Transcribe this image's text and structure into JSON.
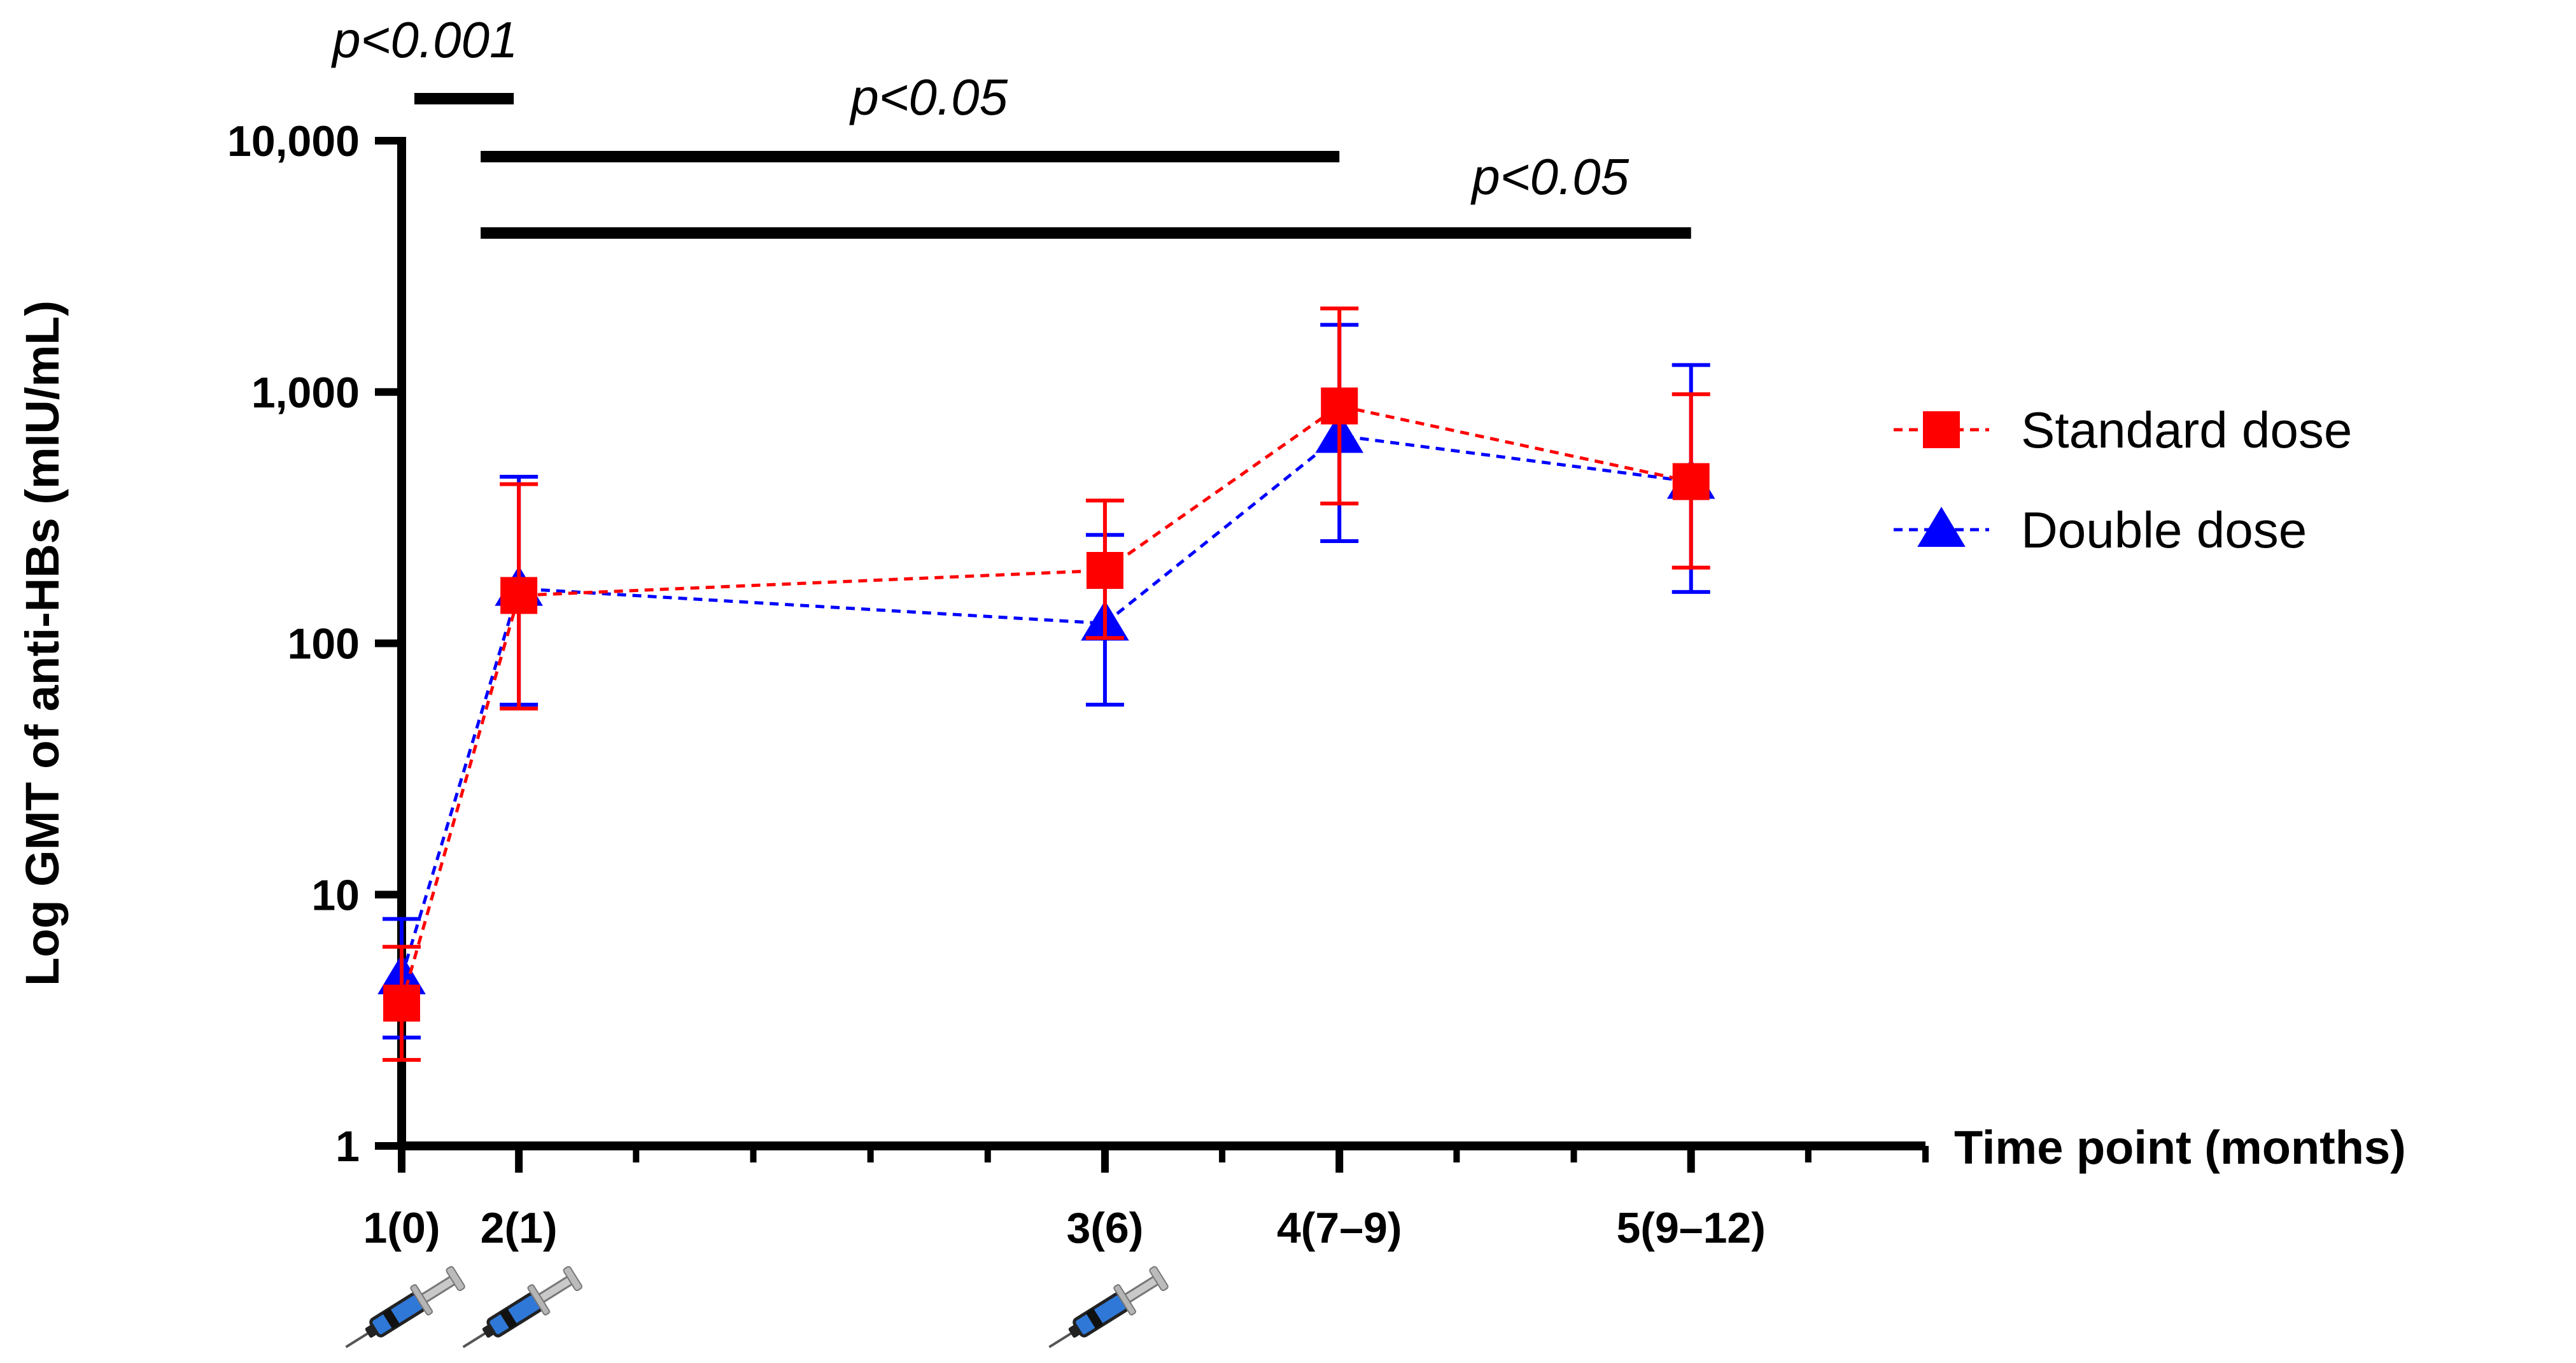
{
  "chart_data": {
    "type": "line",
    "xlabel": "Time point (months)",
    "ylabel": "Log GMT of anti-HBs (mIU/mL)",
    "yscale": "log",
    "ylim": [
      1,
      10000
    ],
    "y_ticks": [
      1,
      10,
      100,
      1000,
      10000
    ],
    "y_tick_labels": [
      "1",
      "10",
      "100",
      "1,000",
      "10,000"
    ],
    "x_ticks": [
      1,
      2,
      3,
      4,
      5
    ],
    "x_tick_labels": [
      "1(0)",
      "2(1)",
      "3(6)",
      "4(7–9)",
      "5(9–12)"
    ],
    "x_months": [
      0,
      1,
      6,
      8,
      11
    ],
    "xlim": [
      0,
      13
    ],
    "vaccination_months": [
      0,
      1,
      6
    ],
    "series": [
      {
        "name": "Standard dose",
        "color": "#ff0000",
        "marker": "square",
        "line": "dashed",
        "values": [
          3.7,
          155,
          195,
          880,
          440
        ],
        "error_low": [
          2.2,
          55,
          105,
          360,
          200
        ],
        "error_high": [
          6.2,
          430,
          370,
          2150,
          980
        ]
      },
      {
        "name": "Double dose",
        "color": "#0000ff",
        "marker": "triangle",
        "line": "dashed",
        "values": [
          4.7,
          165,
          120,
          670,
          440
        ],
        "error_low": [
          2.7,
          57,
          57,
          255,
          160
        ],
        "error_high": [
          8.0,
          460,
          270,
          1850,
          1280
        ]
      }
    ],
    "significance": [
      {
        "label": "p<0.001",
        "from_month": 0,
        "to_month": 1
      },
      {
        "label": "p<0.05",
        "from_month": 1,
        "to_month": 8
      },
      {
        "label": "p<0.05",
        "from_month": 1,
        "to_month": 11
      }
    ],
    "legend_position": "right",
    "grid": false
  },
  "icons": {
    "vaccination": "syringe-icon"
  }
}
